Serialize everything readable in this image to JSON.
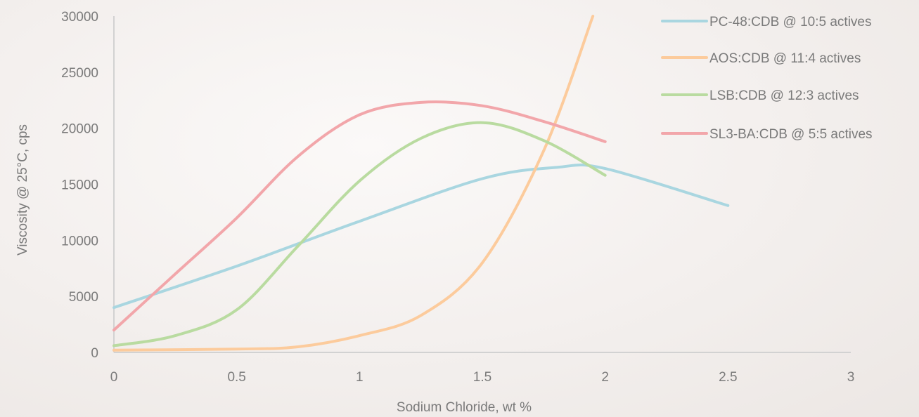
{
  "chart_data": {
    "type": "line",
    "title": "",
    "xlabel": "Sodium Chloride, wt %",
    "ylabel": "Viscosity @ 25°C, cps",
    "xlim": [
      0,
      3
    ],
    "ylim": [
      0,
      30000
    ],
    "xticks": [
      0,
      0.5,
      1,
      1.5,
      2,
      2.5,
      3
    ],
    "xtick_labels": [
      "0",
      "0.5",
      "1",
      "1.5",
      "2",
      "2.5",
      "3"
    ],
    "yticks": [
      0,
      5000,
      10000,
      15000,
      20000,
      25000,
      30000
    ],
    "ytick_labels": [
      "0",
      "5000",
      "10000",
      "15000",
      "20000",
      "25000",
      "30000"
    ],
    "grid": false,
    "legend_position": "top-right",
    "series": [
      {
        "name": "PC-48:CDB @ 10:5 actives",
        "color": "#a9d6e0",
        "x": [
          0,
          0.5,
          1,
          1.5,
          1.8,
          2,
          2.5
        ],
        "y": [
          4000,
          7700,
          11700,
          15500,
          16500,
          16400,
          13100
        ]
      },
      {
        "name": "AOS:CDB @ 11:4 actives",
        "color": "#fccb9c",
        "x": [
          0,
          0.5,
          0.75,
          1,
          1.25,
          1.5,
          1.75,
          1.95
        ],
        "y": [
          200,
          300,
          500,
          1500,
          3300,
          8000,
          18000,
          30000
        ]
      },
      {
        "name": "LSB:CDB @ 12:3 actives",
        "color": "#b9dba0",
        "x": [
          0,
          0.25,
          0.5,
          0.75,
          1,
          1.25,
          1.5,
          1.75,
          2
        ],
        "y": [
          600,
          1500,
          3800,
          9500,
          15300,
          19100,
          20500,
          18900,
          15800
        ]
      },
      {
        "name": "SL3-BA:CDB @ 5:5 actives",
        "color": "#f2a6aa",
        "x": [
          0,
          0.25,
          0.5,
          0.75,
          1,
          1.25,
          1.5,
          1.75,
          2
        ],
        "y": [
          2000,
          7000,
          12000,
          17500,
          21200,
          22300,
          22000,
          20600,
          18800
        ]
      }
    ]
  }
}
